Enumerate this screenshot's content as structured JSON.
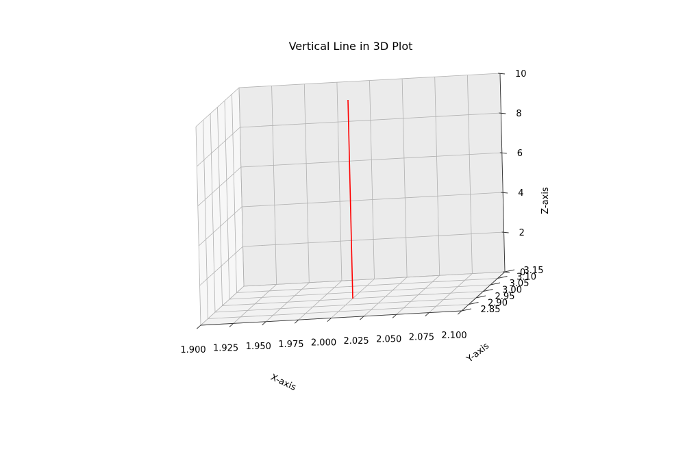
{
  "chart_data": {
    "type": "line",
    "projection": "3d",
    "title": "Vertical Line in 3D Plot",
    "xlabel": "X-axis",
    "ylabel": "Y-axis",
    "zlabel": "Z-axis",
    "xlim": [
      1.9,
      2.1
    ],
    "ylim": [
      2.85,
      3.15
    ],
    "zlim": [
      0,
      10
    ],
    "x_ticks": [
      "1.900",
      "1.925",
      "1.950",
      "1.975",
      "2.000",
      "2.025",
      "2.050",
      "2.075",
      "2.100"
    ],
    "y_ticks": [
      "2.85",
      "2.90",
      "2.95",
      "3.00",
      "3.05",
      "3.10",
      "3.15"
    ],
    "z_ticks": [
      "0",
      "2",
      "4",
      "6",
      "8",
      "10"
    ],
    "grid": true,
    "series": [
      {
        "color": "#ff0000",
        "x": [
          2,
          2
        ],
        "y": [
          3,
          3
        ],
        "z": [
          0,
          10
        ]
      }
    ]
  }
}
